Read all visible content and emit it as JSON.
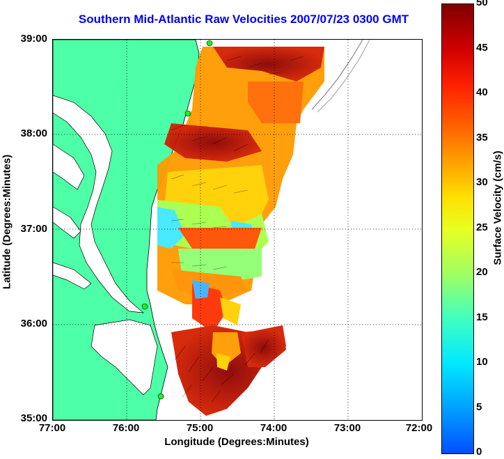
{
  "title": "Southern Mid-Atlantic Raw Velocities 2007/07/23 0300 GMT",
  "xaxis": {
    "label": "Longitude (Degrees:Minutes)",
    "ticks": [
      "77:00",
      "76:00",
      "75:00",
      "74:00",
      "73:00",
      "72:00"
    ]
  },
  "yaxis": {
    "label": "Latitude (Degrees:Minutes)",
    "ticks": [
      "39:00",
      "38:00",
      "37:00",
      "36:00",
      "35:00"
    ]
  },
  "colorbar": {
    "label": "Surface Velocity (cm/s)",
    "ticks": [
      "50",
      "45",
      "40",
      "35",
      "30",
      "25",
      "20",
      "15",
      "10",
      "5",
      "0"
    ],
    "range": [
      0,
      50
    ]
  },
  "colors": {
    "land": "#4dffa6",
    "title": "#0000ff",
    "station": "#22ee22"
  }
}
